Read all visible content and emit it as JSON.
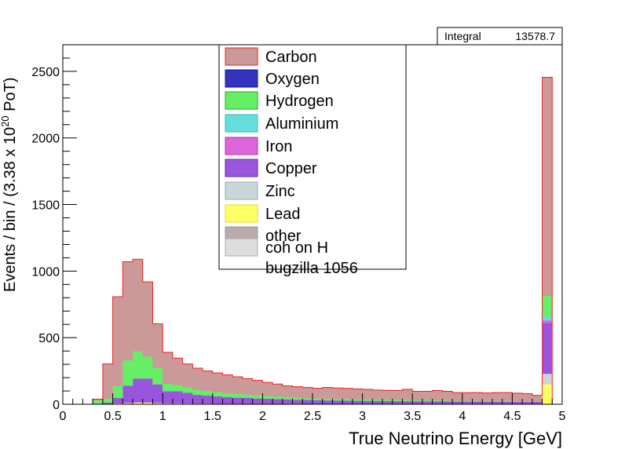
{
  "stats": {
    "label": "Integral",
    "value": "13578.7"
  },
  "chart_data": {
    "type": "bar",
    "stacked": true,
    "xlabel": "True Neutrino Energy [GeV]",
    "ylabel_prefix": "Events / bin / (3.38 x 10",
    "ylabel_exp": "20",
    "ylabel_suffix": " PoT)",
    "xlim": [
      0,
      5
    ],
    "ylim": [
      0,
      2700
    ],
    "bin_width": 0.1,
    "x_start": 0.3,
    "xticks": [
      "0",
      "0.5",
      "1",
      "1.5",
      "2",
      "2.5",
      "3",
      "3.5",
      "4",
      "4.5",
      "5"
    ],
    "xtick_values": [
      0,
      0.5,
      1,
      1.5,
      2,
      2.5,
      3,
      3.5,
      4,
      4.5,
      5
    ],
    "yticks": [
      0,
      500,
      1000,
      1500,
      2000,
      2500
    ],
    "ytick_labels": [
      "0",
      "500",
      "1000",
      "1500",
      "2000",
      "2500"
    ],
    "series": [
      {
        "name": "Lead",
        "color": "#ffff66",
        "values": [
          0,
          3,
          8,
          10,
          14,
          14,
          10,
          8,
          8,
          7,
          6,
          6,
          5,
          5,
          5,
          4,
          4,
          4,
          4,
          4,
          4,
          3,
          3,
          3,
          3,
          3,
          3,
          3,
          3,
          3,
          3,
          3,
          3,
          3,
          3,
          3,
          3,
          3,
          3,
          3,
          3,
          3,
          3,
          3,
          3,
          150
        ]
      },
      {
        "name": "Zinc",
        "color": "#c8d8d8",
        "values": [
          0,
          0,
          0,
          0,
          0,
          0,
          0,
          0,
          0,
          0,
          0,
          0,
          0,
          0,
          0,
          0,
          0,
          0,
          0,
          0,
          0,
          0,
          0,
          0,
          0,
          0,
          0,
          0,
          0,
          0,
          0,
          0,
          0,
          0,
          0,
          0,
          0,
          0,
          0,
          0,
          0,
          0,
          0,
          0,
          0,
          80
        ]
      },
      {
        "name": "Copper",
        "color": "#9955dd",
        "values": [
          0,
          10,
          40,
          130,
          180,
          180,
          140,
          90,
          90,
          80,
          65,
          60,
          55,
          50,
          45,
          45,
          40,
          38,
          35,
          33,
          30,
          30,
          28,
          27,
          26,
          25,
          24,
          23,
          22,
          22,
          21,
          21,
          20,
          20,
          19,
          19,
          18,
          18,
          18,
          17,
          17,
          17,
          16,
          16,
          16,
          380
        ]
      },
      {
        "name": "Iron",
        "color": "#dd66dd",
        "values": [
          0,
          0,
          0,
          0,
          0,
          0,
          0,
          0,
          0,
          0,
          0,
          0,
          0,
          0,
          0,
          0,
          0,
          0,
          0,
          0,
          0,
          0,
          0,
          0,
          0,
          0,
          0,
          0,
          0,
          0,
          0,
          0,
          0,
          0,
          0,
          0,
          0,
          0,
          0,
          0,
          0,
          0,
          0,
          0,
          0,
          20
        ]
      },
      {
        "name": "Aluminium",
        "color": "#66dddd",
        "values": [
          0,
          0,
          0,
          0,
          0,
          0,
          0,
          0,
          0,
          0,
          0,
          0,
          0,
          0,
          0,
          0,
          0,
          0,
          0,
          0,
          0,
          0,
          0,
          0,
          0,
          0,
          0,
          0,
          0,
          0,
          0,
          0,
          0,
          0,
          0,
          0,
          0,
          0,
          0,
          0,
          0,
          0,
          0,
          0,
          0,
          30
        ]
      },
      {
        "name": "Oxygen",
        "color": "#3333bb",
        "values": [
          0,
          0,
          0,
          0,
          0,
          0,
          0,
          0,
          0,
          0,
          0,
          0,
          0,
          0,
          0,
          0,
          0,
          0,
          0,
          0,
          0,
          0,
          0,
          0,
          0,
          0,
          0,
          0,
          0,
          0,
          0,
          0,
          0,
          0,
          0,
          0,
          0,
          0,
          0,
          0,
          0,
          0,
          0,
          0,
          0,
          0
        ]
      },
      {
        "name": "Hydrogen",
        "color": "#66ee66",
        "values": [
          30,
          30,
          90,
          190,
          205,
          166,
          124,
          57,
          48,
          41,
          37,
          35,
          32,
          30,
          28,
          26,
          24,
          22,
          20,
          18,
          16,
          14,
          13,
          12,
          11,
          11,
          10,
          10,
          9,
          9,
          9,
          8,
          8,
          8,
          8,
          8,
          7,
          7,
          7,
          7,
          7,
          7,
          6,
          6,
          6,
          155
        ]
      },
      {
        "name": "Carbon",
        "color": "#cc9999",
        "values": [
          8,
          260,
          670,
          740,
          690,
          560,
          330,
          235,
          200,
          175,
          163,
          149,
          143,
          135,
          128,
          117,
          111,
          100,
          93,
          83,
          82,
          79,
          76,
          84,
          82,
          80,
          78,
          76,
          73,
          71,
          70,
          80,
          66,
          66,
          73,
          67,
          60,
          59,
          60,
          58,
          61,
          61,
          58,
          55,
          42,
          1640
        ]
      }
    ]
  }
}
